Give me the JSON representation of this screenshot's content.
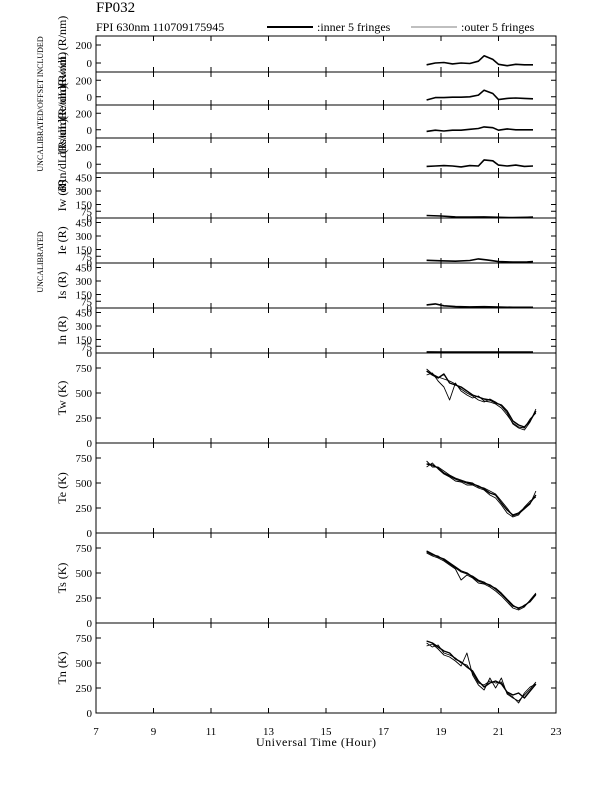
{
  "page": {
    "title": "FP032",
    "subtitle": "FPI 630nm 110709175945",
    "legend_inner": ":inner 5 fringes",
    "legend_outer": ":outer 5 fringes",
    "side_label_top": "UNCALIBRATED/OFFSET INCLUDED",
    "side_label_mid": "UNCALIBRATED",
    "xlabel": "Universal Time (Hour)"
  },
  "chart_data": {
    "type": "line",
    "x_axis": {
      "label": "Universal Time (Hour)",
      "range": [
        7,
        23
      ],
      "ticks": [
        "7",
        "9",
        "11",
        "13",
        "15",
        "17",
        "19",
        "21",
        "23"
      ]
    },
    "panels": [
      {
        "id": "drw",
        "ylabel": "dRw/dL (R/nm)",
        "ylim": [
          -100,
          300
        ],
        "ticks": [
          "200",
          "0"
        ],
        "series": [
          {
            "x": [
              18.5,
              18.8,
              19.1,
              19.4,
              19.7,
              20.0,
              20.3,
              20.5,
              20.8,
              21.0,
              21.3,
              21.6,
              21.9,
              22.2
            ],
            "y": [
              -20,
              0,
              5,
              -10,
              0,
              -5,
              20,
              80,
              40,
              -15,
              -30,
              -15,
              -20,
              -20
            ]
          }
        ]
      },
      {
        "id": "dre",
        "ylabel": "dRe/dL (R/nm)",
        "ylim": [
          -100,
          300
        ],
        "ticks": [
          "200",
          "0"
        ],
        "series": [
          {
            "x": [
              18.5,
              18.8,
              19.1,
              19.4,
              19.7,
              20.0,
              20.3,
              20.5,
              20.8,
              21.0,
              21.3,
              21.6,
              21.9,
              22.2
            ],
            "y": [
              -40,
              -10,
              -10,
              -5,
              -5,
              0,
              20,
              80,
              40,
              -35,
              -20,
              -15,
              -20,
              -25
            ]
          }
        ]
      },
      {
        "id": "drs",
        "ylabel": "dRs/dL (R/nm)",
        "ylim": [
          -100,
          300
        ],
        "ticks": [
          "200",
          "0"
        ],
        "series": [
          {
            "x": [
              18.5,
              18.8,
              19.1,
              19.4,
              19.7,
              20.0,
              20.3,
              20.5,
              20.8,
              21.0,
              21.3,
              21.6,
              21.9,
              22.2
            ],
            "y": [
              -20,
              -5,
              -15,
              -5,
              -5,
              5,
              15,
              35,
              25,
              -5,
              10,
              0,
              0,
              0
            ]
          }
        ]
      },
      {
        "id": "drn",
        "ylabel": "dRn/dL (R/nm)",
        "ylim": [
          -100,
          300
        ],
        "ticks": [
          "200",
          "0"
        ],
        "series": [
          {
            "x": [
              18.5,
              18.8,
              19.1,
              19.4,
              19.7,
              20.0,
              20.3,
              20.5,
              20.8,
              21.0,
              21.3,
              21.6,
              21.9,
              22.2
            ],
            "y": [
              -25,
              -20,
              -15,
              -20,
              -30,
              -15,
              -20,
              50,
              40,
              -10,
              -20,
              -10,
              -25,
              -20
            ]
          }
        ]
      },
      {
        "id": "iw",
        "ylabel": "Iw (R)",
        "ylim": [
          0,
          500
        ],
        "ticks": [
          "450",
          "300",
          "150",
          "75",
          "0"
        ],
        "series": [
          {
            "x": [
              18.5,
              19.0,
              19.5,
              20.0,
              20.5,
              21.0,
              21.5,
              22.0,
              22.2
            ],
            "y": [
              28,
              22,
              12,
              10,
              12,
              8,
              5,
              8,
              10
            ]
          }
        ]
      },
      {
        "id": "ie",
        "ylabel": "Ie (R)",
        "ylim": [
          0,
          500
        ],
        "ticks": [
          "450",
          "300",
          "150",
          "75",
          "0"
        ],
        "series": [
          {
            "x": [
              18.5,
              19.0,
              19.5,
              20.0,
              20.3,
              20.6,
              21.0,
              21.5,
              22.0,
              22.2
            ],
            "y": [
              30,
              25,
              20,
              28,
              45,
              35,
              15,
              10,
              12,
              15
            ]
          }
        ]
      },
      {
        "id": "is",
        "ylabel": "Is (R)",
        "ylim": [
          0,
          500
        ],
        "ticks": [
          "450",
          "300",
          "150",
          "75",
          "0"
        ],
        "series": [
          {
            "x": [
              18.5,
              18.8,
              19.1,
              19.5,
              20.0,
              20.5,
              21.0,
              21.5,
              22.0,
              22.2
            ],
            "y": [
              35,
              45,
              25,
              15,
              12,
              14,
              10,
              8,
              8,
              8
            ]
          }
        ]
      },
      {
        "id": "in",
        "ylabel": "In (R)",
        "ylim": [
          0,
          500
        ],
        "ticks": [
          "450",
          "300",
          "150",
          "75",
          "0"
        ],
        "series": [
          {
            "x": [
              18.5,
              19.0,
              20.0,
              21.0,
              22.0,
              22.2
            ],
            "y": [
              12,
              10,
              10,
              10,
              10,
              10
            ]
          }
        ]
      },
      {
        "id": "tw",
        "ylabel": "Tw (K)",
        "ylim": [
          0,
          900
        ],
        "ticks": [
          "750",
          "500",
          "250",
          "0"
        ],
        "series": [
          {
            "x": [
              18.5,
              18.7,
              18.9,
              19.1,
              19.3,
              19.5,
              19.7,
              19.9,
              20.1,
              20.3,
              20.5,
              20.7,
              20.9,
              21.1,
              21.3,
              21.5,
              21.7,
              21.9,
              22.1,
              22.3
            ],
            "y": [
              720,
              680,
              650,
              690,
              600,
              580,
              560,
              520,
              480,
              460,
              440,
              430,
              400,
              380,
              320,
              220,
              180,
              160,
              220,
              320
            ]
          },
          {
            "x": [
              18.5,
              18.7,
              18.9,
              19.1,
              19.3,
              19.5,
              19.7,
              19.9,
              20.1,
              20.3,
              20.5,
              20.7,
              20.9,
              21.1,
              21.3,
              21.5,
              21.7,
              21.9,
              22.1,
              22.3
            ],
            "y": [
              680,
              700,
              620,
              560,
              430,
              600,
              520,
              480,
              450,
              470,
              420,
              410,
              390,
              350,
              280,
              200,
              160,
              150,
              240,
              300
            ]
          },
          {
            "x": [
              18.5,
              18.7,
              18.9,
              19.1,
              19.3,
              19.5,
              19.7,
              19.9,
              20.1,
              20.3,
              20.5,
              20.7,
              20.9,
              21.1,
              21.3,
              21.5,
              21.7,
              21.9,
              22.1,
              22.3
            ],
            "y": [
              740,
              690,
              660,
              640,
              620,
              590,
              540,
              500,
              470,
              430,
              410,
              440,
              410,
              370,
              300,
              190,
              150,
              130,
              210,
              340
            ]
          }
        ]
      },
      {
        "id": "te",
        "ylabel": "Te (K)",
        "ylim": [
          0,
          900
        ],
        "ticks": [
          "750",
          "500",
          "250",
          "0"
        ],
        "series": [
          {
            "x": [
              18.5,
              18.7,
              18.9,
              19.1,
              19.3,
              19.5,
              19.7,
              19.9,
              20.1,
              20.3,
              20.5,
              20.7,
              20.9,
              21.1,
              21.3,
              21.5,
              21.7,
              21.9,
              22.1,
              22.3
            ],
            "y": [
              690,
              680,
              650,
              600,
              570,
              540,
              520,
              500,
              490,
              470,
              440,
              400,
              380,
              300,
              230,
              180,
              200,
              250,
              300,
              380
            ]
          },
          {
            "x": [
              18.5,
              18.7,
              18.9,
              19.1,
              19.3,
              19.5,
              19.7,
              19.9,
              20.1,
              20.3,
              20.5,
              20.7,
              20.9,
              21.1,
              21.3,
              21.5,
              21.7,
              21.9,
              22.1,
              22.3
            ],
            "y": [
              660,
              700,
              640,
              590,
              560,
              520,
              510,
              480,
              480,
              450,
              430,
              380,
              350,
              280,
              200,
              160,
              180,
              260,
              320,
              360
            ]
          },
          {
            "x": [
              18.5,
              18.7,
              18.9,
              19.1,
              19.3,
              19.5,
              19.7,
              19.9,
              20.1,
              20.3,
              20.5,
              20.7,
              20.9,
              21.1,
              21.3,
              21.5,
              21.7,
              21.9,
              22.1,
              22.3
            ],
            "y": [
              720,
              660,
              660,
              620,
              580,
              550,
              530,
              510,
              500,
              460,
              450,
              420,
              390,
              320,
              250,
              170,
              190,
              240,
              290,
              420
            ]
          }
        ]
      },
      {
        "id": "ts",
        "ylabel": "Ts (K)",
        "ylim": [
          0,
          900
        ],
        "ticks": [
          "750",
          "500",
          "250",
          "0"
        ],
        "series": [
          {
            "x": [
              18.5,
              18.7,
              18.9,
              19.1,
              19.3,
              19.5,
              19.7,
              19.9,
              20.1,
              20.3,
              20.5,
              20.7,
              20.9,
              21.1,
              21.3,
              21.5,
              21.7,
              21.9,
              22.1,
              22.3
            ],
            "y": [
              720,
              690,
              660,
              640,
              600,
              560,
              520,
              500,
              460,
              420,
              400,
              380,
              340,
              290,
              230,
              170,
              150,
              170,
              220,
              290
            ]
          },
          {
            "x": [
              18.5,
              18.7,
              18.9,
              19.1,
              19.3,
              19.5,
              19.7,
              19.9,
              20.1,
              20.3,
              20.5,
              20.7,
              20.9,
              21.1,
              21.3,
              21.5,
              21.7,
              21.9,
              22.1,
              22.3
            ],
            "y": [
              700,
              670,
              650,
              620,
              580,
              540,
              430,
              480,
              450,
              400,
              390,
              360,
              320,
              270,
              210,
              150,
              130,
              160,
              230,
              300
            ]
          },
          {
            "x": [
              18.5,
              18.7,
              18.9,
              19.1,
              19.3,
              19.5,
              19.7,
              19.9,
              20.1,
              20.3,
              20.5,
              20.7,
              20.9,
              21.1,
              21.3,
              21.5,
              21.7,
              21.9,
              22.1,
              22.3
            ],
            "y": [
              710,
              680,
              670,
              630,
              590,
              550,
              510,
              490,
              470,
              430,
              410,
              370,
              350,
              300,
              240,
              180,
              140,
              180,
              210,
              280
            ]
          }
        ]
      },
      {
        "id": "tn",
        "ylabel": "Tn (K)",
        "ylim": [
          0,
          900
        ],
        "ticks": [
          "750",
          "500",
          "250",
          "0"
        ],
        "series": [
          {
            "x": [
              18.5,
              18.7,
              18.9,
              19.1,
              19.3,
              19.5,
              19.7,
              19.9,
              20.1,
              20.3,
              20.5,
              20.7,
              20.9,
              21.1,
              21.3,
              21.5,
              21.7,
              21.9,
              22.1,
              22.3
            ],
            "y": [
              720,
              700,
              660,
              620,
              600,
              540,
              510,
              460,
              420,
              320,
              260,
              300,
              320,
              290,
              210,
              180,
              200,
              150,
              220,
              290
            ]
          },
          {
            "x": [
              18.5,
              18.7,
              18.9,
              19.1,
              19.3,
              19.5,
              19.7,
              19.9,
              20.1,
              20.3,
              20.5,
              20.7,
              20.9,
              21.1,
              21.3,
              21.5,
              21.7,
              21.9,
              22.1,
              22.3
            ],
            "y": [
              670,
              690,
              640,
              580,
              560,
              520,
              470,
              600,
              380,
              280,
              230,
              350,
              250,
              350,
              190,
              150,
              120,
              180,
              240,
              310
            ]
          },
          {
            "x": [
              18.5,
              18.7,
              18.9,
              19.1,
              19.3,
              19.5,
              19.7,
              19.9,
              20.1,
              20.3,
              20.5,
              20.7,
              20.9,
              21.1,
              21.3,
              21.5,
              21.7,
              21.9,
              22.1,
              22.3
            ],
            "y": [
              700,
              660,
              680,
              600,
              580,
              550,
              500,
              480,
              400,
              300,
              280,
              320,
              300,
              310,
              200,
              160,
              100,
              200,
              260,
              290
            ]
          }
        ]
      }
    ]
  }
}
